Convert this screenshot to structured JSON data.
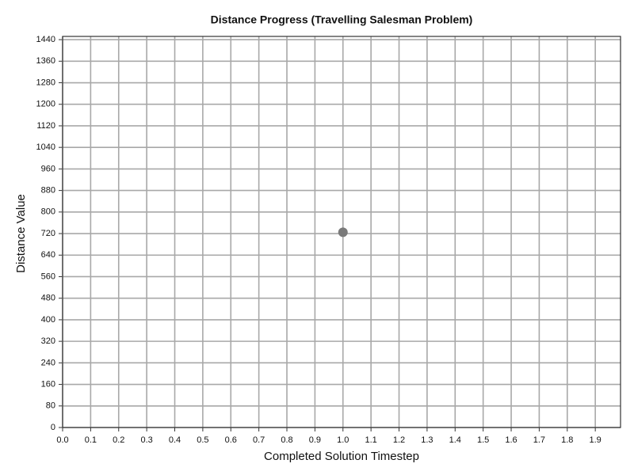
{
  "chart_data": {
    "type": "scatter",
    "title": "Distance Progress (Travelling Salesman Problem)",
    "x_label": "Completed Solution Timestep",
    "y_label": "Distance Value",
    "x": [
      1.0
    ],
    "values": [
      725
    ],
    "color": "#7a7a7a",
    "xlim": [
      0,
      1.99
    ],
    "xticks": [
      {
        "value": 0,
        "label": "0.0"
      },
      0.1,
      0.2,
      0.3,
      0.4,
      0.5,
      0.6,
      0.7,
      0.8,
      0.9,
      {
        "value": 1,
        "label": "1.0"
      },
      1.1,
      1.2,
      1.3,
      1.4,
      1.5,
      1.6,
      1.7,
      1.8,
      1.9
    ],
    "ylim": [
      0,
      1452
    ],
    "yticks": [
      0,
      80,
      160,
      240,
      320,
      400,
      480,
      560,
      640,
      720,
      800,
      880,
      960,
      1040,
      1120,
      1200,
      1280,
      1360,
      1440
    ],
    "grid": true
  }
}
